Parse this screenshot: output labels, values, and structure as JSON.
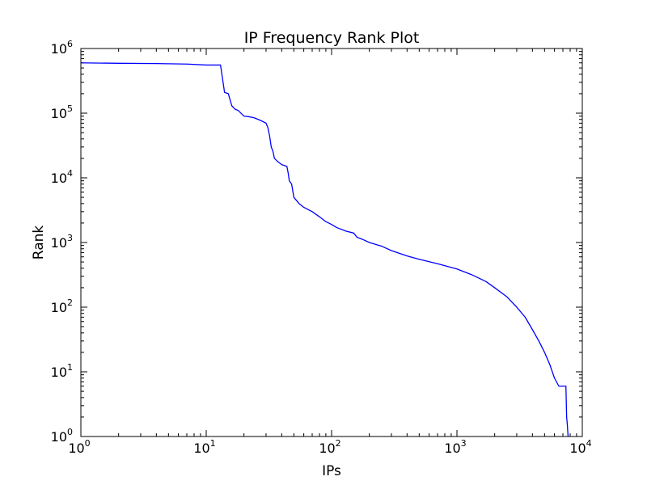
{
  "chart_data": {
    "type": "line",
    "title": "IP Frequency Rank Plot",
    "xlabel": "IPs",
    "ylabel": "Rank",
    "xscale": "log",
    "yscale": "log",
    "xlim": [
      1,
      10000
    ],
    "ylim": [
      1,
      1000000
    ],
    "grid": false,
    "legend": "none",
    "x_ticks": [
      {
        "base": "10",
        "exp": "0",
        "value": 1
      },
      {
        "base": "10",
        "exp": "1",
        "value": 10
      },
      {
        "base": "10",
        "exp": "2",
        "value": 100
      },
      {
        "base": "10",
        "exp": "3",
        "value": 1000
      },
      {
        "base": "10",
        "exp": "4",
        "value": 10000
      }
    ],
    "y_ticks": [
      {
        "base": "10",
        "exp": "0",
        "value": 1
      },
      {
        "base": "10",
        "exp": "1",
        "value": 10
      },
      {
        "base": "10",
        "exp": "2",
        "value": 100
      },
      {
        "base": "10",
        "exp": "3",
        "value": 1000
      },
      {
        "base": "10",
        "exp": "4",
        "value": 10000
      },
      {
        "base": "10",
        "exp": "5",
        "value": 100000
      },
      {
        "base": "10",
        "exp": "6",
        "value": 1000000
      }
    ],
    "series": [
      {
        "color": "#0000ff",
        "x": [
          1,
          2,
          4,
          7,
          10,
          13,
          14,
          15,
          16,
          17,
          18,
          20,
          22,
          24,
          26,
          28,
          30,
          31,
          32,
          33,
          34,
          35,
          37,
          40,
          42,
          44,
          45,
          46,
          48,
          50,
          55,
          60,
          70,
          80,
          90,
          100,
          110,
          130,
          150,
          160,
          170,
          180,
          200,
          250,
          300,
          400,
          500,
          700,
          1000,
          1300,
          1700,
          2000,
          2500,
          3000,
          3500,
          4000,
          4500,
          5000,
          5500,
          6000,
          6500,
          7000,
          7200,
          7400,
          7500,
          7600,
          7700
        ],
        "y": [
          600000,
          590000,
          585000,
          575000,
          555000,
          555000,
          210000,
          200000,
          130000,
          115000,
          110000,
          90000,
          88000,
          85000,
          80000,
          75000,
          70000,
          60000,
          45000,
          30000,
          26000,
          20000,
          18000,
          16000,
          15500,
          15000,
          12000,
          9000,
          8000,
          5000,
          4000,
          3500,
          3000,
          2500,
          2100,
          1900,
          1700,
          1500,
          1400,
          1200,
          1150,
          1100,
          1000,
          880,
          750,
          620,
          550,
          470,
          390,
          320,
          250,
          200,
          145,
          100,
          70,
          45,
          30,
          20,
          13,
          8,
          6,
          6,
          6,
          6,
          2,
          1.5,
          1
        ]
      }
    ]
  }
}
